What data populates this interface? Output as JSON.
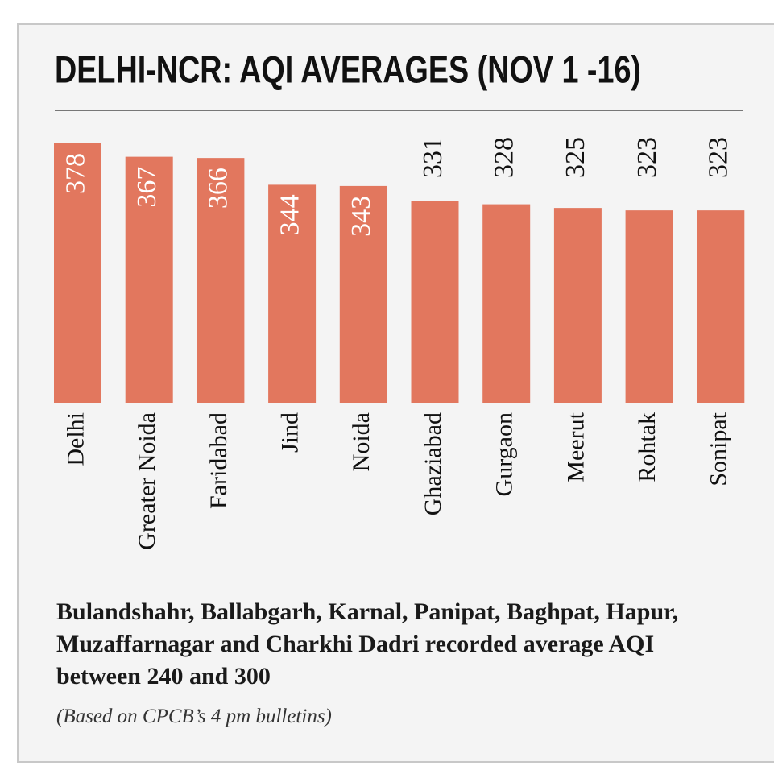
{
  "chart_data": {
    "type": "bar",
    "title": "DELHI-NCR: AQI AVERAGES (NOV 1 -16)",
    "categories": [
      "Delhi",
      "Greater Noida",
      "Faridabad",
      "Jind",
      "Noida",
      "Ghaziabad",
      "Gurgaon",
      "Meerut",
      "Rohtak",
      "Sonipat"
    ],
    "values": [
      378,
      367,
      366,
      344,
      343,
      331,
      328,
      325,
      323,
      323
    ],
    "color": "#e2775e",
    "ylim": [
      165,
      378
    ],
    "note": "Bulandshahr, Ballabgarh, Karnal, Panipat, Baghpat, Hapur, Muzaffarnagar and Charkhi Dadri recorded average AQI between 240 and 300",
    "source": "(Based on CPCB’s 4 pm bulletins)"
  }
}
